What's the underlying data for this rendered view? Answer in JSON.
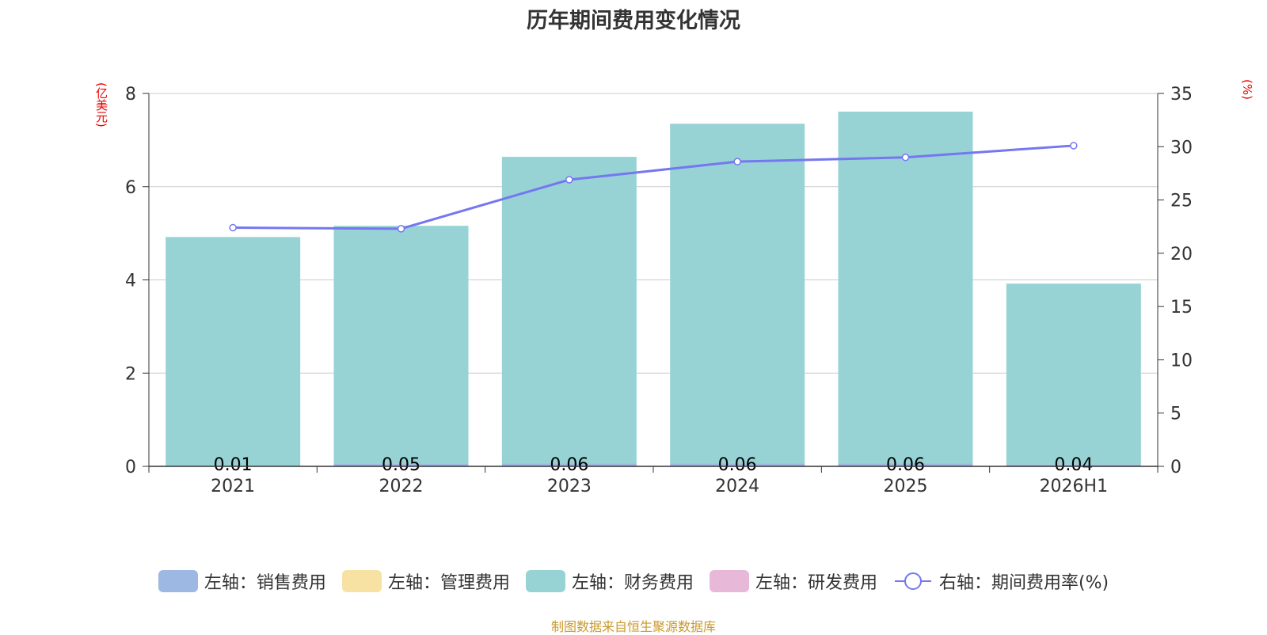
{
  "chart_data": {
    "type": "bar",
    "title": "历年期间费用变化情况",
    "left_axis_label": "(亿美元)",
    "right_axis_label": "(%)",
    "categories": [
      "2021",
      "2022",
      "2023",
      "2024",
      "2025",
      "2026H1"
    ],
    "stacked": true,
    "ylim_left": [
      0,
      8
    ],
    "yticks_left": [
      "0",
      "2",
      "4",
      "6",
      "8"
    ],
    "ylim_right": [
      0,
      35
    ],
    "yticks_right": [
      "0",
      "5",
      "10",
      "15",
      "20",
      "25",
      "30",
      "35"
    ],
    "grid": true,
    "legend_position": "bottom",
    "series": [
      {
        "name": "左轴：销售费用",
        "type": "bar",
        "axis": "left",
        "color": "#9db8e3",
        "values": [
          0.01,
          0.05,
          0.06,
          0.06,
          0.06,
          0.04
        ]
      },
      {
        "name": "左轴：管理费用",
        "type": "bar",
        "axis": "left",
        "color": "#f7e2a3",
        "values": [
          0,
          0,
          0,
          0,
          0,
          0
        ]
      },
      {
        "name": "左轴：财务费用",
        "type": "bar",
        "axis": "left",
        "color": "#97d3d5",
        "values": [
          4.91,
          5.11,
          6.58,
          7.29,
          7.55,
          3.88
        ]
      },
      {
        "name": "左轴：研发费用",
        "type": "bar",
        "axis": "left",
        "color": "#e8b8d8",
        "values": [
          0,
          0,
          0,
          0,
          0,
          0
        ]
      },
      {
        "name": "右轴：期间费用率(%)",
        "type": "line",
        "axis": "right",
        "color": "#7577f0",
        "values": [
          22.4,
          22.3,
          26.9,
          28.6,
          29.0,
          30.1
        ]
      }
    ],
    "data_labels": [
      "0.01",
      "0.05",
      "0.06",
      "0.06",
      "0.06",
      "0.04"
    ]
  },
  "footer": {
    "source": "制图数据来自恒生聚源数据库"
  }
}
